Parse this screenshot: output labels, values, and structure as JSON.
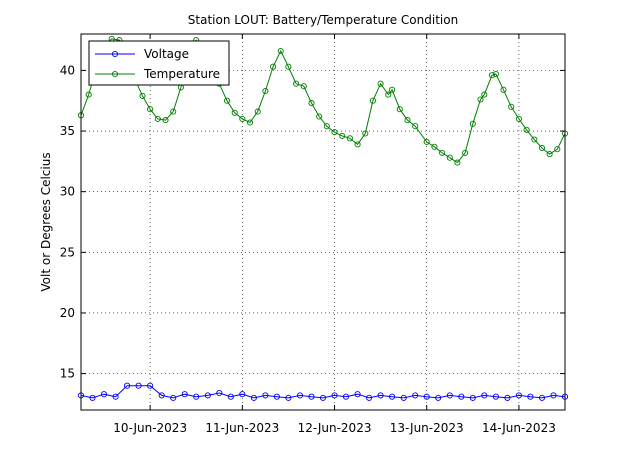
{
  "chart_data": {
    "type": "line",
    "title": "Station LOUT: Battery/Temperature Condition",
    "xlabel": "",
    "ylabel": "Volt or Degrees Celcius",
    "x_unit": "date",
    "xlim": [
      "2023-06-09 06:00",
      "2023-06-14 12:00"
    ],
    "ylim": [
      12,
      43
    ],
    "y_ticks": [
      15,
      20,
      25,
      30,
      35,
      40
    ],
    "x_ticks": [
      {
        "date": "2023-06-10 00:00",
        "label": "10-Jun-2023"
      },
      {
        "date": "2023-06-11 00:00",
        "label": "11-Jun-2023"
      },
      {
        "date": "2023-06-12 00:00",
        "label": "12-Jun-2023"
      },
      {
        "date": "2023-06-13 00:00",
        "label": "13-Jun-2023"
      },
      {
        "date": "2023-06-14 00:00",
        "label": "14-Jun-2023"
      }
    ],
    "grid": true,
    "legend_position": "top-left",
    "series": [
      {
        "name": "Voltage",
        "color": "#0000ff",
        "marker": "circle",
        "points": [
          [
            "2023-06-09 06:00",
            13.2
          ],
          [
            "2023-06-09 09:00",
            13.0
          ],
          [
            "2023-06-09 12:00",
            13.3
          ],
          [
            "2023-06-09 15:00",
            13.1
          ],
          [
            "2023-06-09 18:00",
            14.0
          ],
          [
            "2023-06-09 21:00",
            14.0
          ],
          [
            "2023-06-10 00:00",
            14.0
          ],
          [
            "2023-06-10 03:00",
            13.2
          ],
          [
            "2023-06-10 06:00",
            13.0
          ],
          [
            "2023-06-10 09:00",
            13.3
          ],
          [
            "2023-06-10 12:00",
            13.1
          ],
          [
            "2023-06-10 15:00",
            13.2
          ],
          [
            "2023-06-10 18:00",
            13.4
          ],
          [
            "2023-06-10 21:00",
            13.1
          ],
          [
            "2023-06-11 00:00",
            13.3
          ],
          [
            "2023-06-11 03:00",
            13.0
          ],
          [
            "2023-06-11 06:00",
            13.2
          ],
          [
            "2023-06-11 09:00",
            13.1
          ],
          [
            "2023-06-11 12:00",
            13.0
          ],
          [
            "2023-06-11 15:00",
            13.2
          ],
          [
            "2023-06-11 18:00",
            13.1
          ],
          [
            "2023-06-11 21:00",
            13.0
          ],
          [
            "2023-06-12 00:00",
            13.2
          ],
          [
            "2023-06-12 03:00",
            13.1
          ],
          [
            "2023-06-12 06:00",
            13.3
          ],
          [
            "2023-06-12 09:00",
            13.0
          ],
          [
            "2023-06-12 12:00",
            13.2
          ],
          [
            "2023-06-12 15:00",
            13.1
          ],
          [
            "2023-06-12 18:00",
            13.0
          ],
          [
            "2023-06-12 21:00",
            13.2
          ],
          [
            "2023-06-13 00:00",
            13.1
          ],
          [
            "2023-06-13 03:00",
            13.0
          ],
          [
            "2023-06-13 06:00",
            13.2
          ],
          [
            "2023-06-13 09:00",
            13.1
          ],
          [
            "2023-06-13 12:00",
            13.0
          ],
          [
            "2023-06-13 15:00",
            13.2
          ],
          [
            "2023-06-13 18:00",
            13.1
          ],
          [
            "2023-06-13 21:00",
            13.0
          ],
          [
            "2023-06-14 00:00",
            13.2
          ],
          [
            "2023-06-14 03:00",
            13.1
          ],
          [
            "2023-06-14 06:00",
            13.0
          ],
          [
            "2023-06-14 09:00",
            13.2
          ],
          [
            "2023-06-14 12:00",
            13.1
          ]
        ]
      },
      {
        "name": "Temperature",
        "color": "#008000",
        "marker": "circle",
        "points": [
          [
            "2023-06-09 06:00",
            36.3
          ],
          [
            "2023-06-09 08:00",
            38.0
          ],
          [
            "2023-06-09 10:00",
            40.2
          ],
          [
            "2023-06-09 12:00",
            42.0
          ],
          [
            "2023-06-09 14:00",
            42.6
          ],
          [
            "2023-06-09 16:00",
            42.5
          ],
          [
            "2023-06-09 18:00",
            41.0
          ],
          [
            "2023-06-09 20:00",
            39.3
          ],
          [
            "2023-06-09 22:00",
            37.9
          ],
          [
            "2023-06-10 00:00",
            36.8
          ],
          [
            "2023-06-10 02:00",
            36.0
          ],
          [
            "2023-06-10 04:00",
            35.9
          ],
          [
            "2023-06-10 06:00",
            36.6
          ],
          [
            "2023-06-10 08:00",
            38.6
          ],
          [
            "2023-06-10 10:00",
            41.0
          ],
          [
            "2023-06-10 12:00",
            42.5
          ],
          [
            "2023-06-10 14:00",
            41.6
          ],
          [
            "2023-06-10 16:00",
            39.8
          ],
          [
            "2023-06-10 18:00",
            38.9
          ],
          [
            "2023-06-10 20:00",
            37.5
          ],
          [
            "2023-06-10 22:00",
            36.5
          ],
          [
            "2023-06-11 00:00",
            36.0
          ],
          [
            "2023-06-11 02:00",
            35.7
          ],
          [
            "2023-06-11 04:00",
            36.6
          ],
          [
            "2023-06-11 06:00",
            38.3
          ],
          [
            "2023-06-11 08:00",
            40.3
          ],
          [
            "2023-06-11 10:00",
            41.6
          ],
          [
            "2023-06-11 12:00",
            40.3
          ],
          [
            "2023-06-11 14:00",
            38.9
          ],
          [
            "2023-06-11 16:00",
            38.7
          ],
          [
            "2023-06-11 18:00",
            37.3
          ],
          [
            "2023-06-11 20:00",
            36.2
          ],
          [
            "2023-06-11 22:00",
            35.4
          ],
          [
            "2023-06-12 00:00",
            34.9
          ],
          [
            "2023-06-12 02:00",
            34.6
          ],
          [
            "2023-06-12 04:00",
            34.4
          ],
          [
            "2023-06-12 06:00",
            33.9
          ],
          [
            "2023-06-12 08:00",
            34.8
          ],
          [
            "2023-06-12 10:00",
            37.5
          ],
          [
            "2023-06-12 12:00",
            38.9
          ],
          [
            "2023-06-12 14:00",
            38.0
          ],
          [
            "2023-06-12 15:00",
            38.4
          ],
          [
            "2023-06-12 17:00",
            36.8
          ],
          [
            "2023-06-12 19:00",
            35.9
          ],
          [
            "2023-06-12 21:00",
            35.4
          ],
          [
            "2023-06-13 00:00",
            34.1
          ],
          [
            "2023-06-13 02:00",
            33.7
          ],
          [
            "2023-06-13 04:00",
            33.2
          ],
          [
            "2023-06-13 06:00",
            32.8
          ],
          [
            "2023-06-13 08:00",
            32.4
          ],
          [
            "2023-06-13 10:00",
            33.2
          ],
          [
            "2023-06-13 12:00",
            35.6
          ],
          [
            "2023-06-13 14:00",
            37.6
          ],
          [
            "2023-06-13 15:00",
            38.0
          ],
          [
            "2023-06-13 17:00",
            39.6
          ],
          [
            "2023-06-13 18:00",
            39.7
          ],
          [
            "2023-06-13 20:00",
            38.4
          ],
          [
            "2023-06-13 22:00",
            37.0
          ],
          [
            "2023-06-14 00:00",
            36.0
          ],
          [
            "2023-06-14 02:00",
            35.1
          ],
          [
            "2023-06-14 04:00",
            34.3
          ],
          [
            "2023-06-14 06:00",
            33.6
          ],
          [
            "2023-06-14 08:00",
            33.1
          ],
          [
            "2023-06-14 10:00",
            33.5
          ],
          [
            "2023-06-14 12:00",
            34.8
          ]
        ]
      }
    ]
  }
}
